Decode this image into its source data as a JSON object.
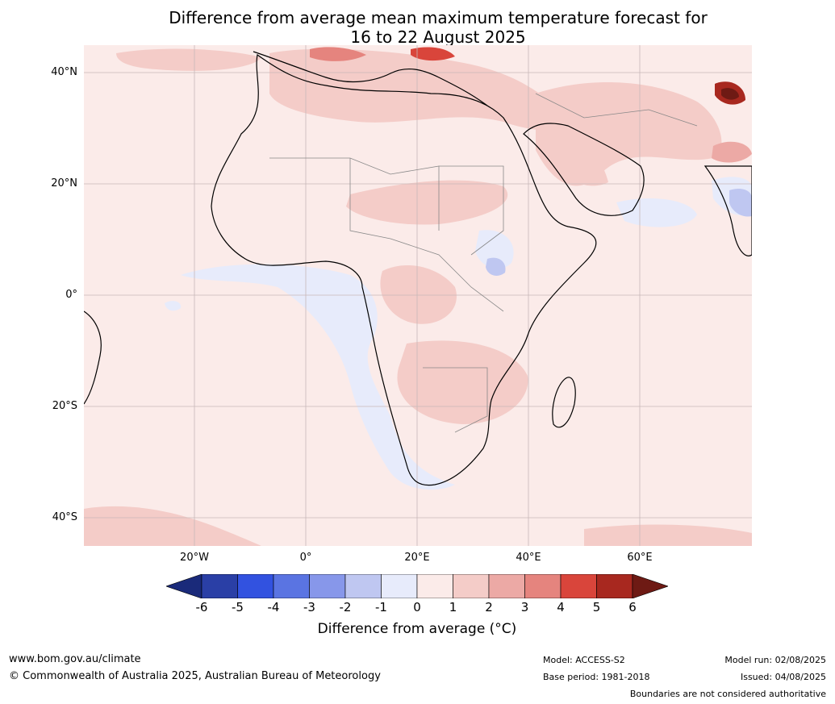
{
  "title": {
    "line1": "Difference from average mean maximum temperature forecast for",
    "line2": "16 to 22 August 2025"
  },
  "map": {
    "lat_labels": [
      "40°N",
      "20°N",
      "0°",
      "20°S",
      "40°S"
    ],
    "lon_labels": [
      "20°W",
      "0°",
      "20°E",
      "40°E",
      "60°E"
    ],
    "background_color": "#fbebe9",
    "coast_color": "#000000",
    "border_color": "#888888",
    "grid_color": "#c8b8b8"
  },
  "colorbar": {
    "ticks": [
      "-6",
      "-5",
      "-4",
      "-3",
      "-2",
      "-1",
      "0",
      "1",
      "2",
      "3",
      "4",
      "5",
      "6"
    ],
    "colors": [
      "#2a3fa6",
      "#3252e0",
      "#5a74e2",
      "#8797ea",
      "#bfc7f1",
      "#e7ebfb",
      "#fbebe9",
      "#f4ccc8",
      "#eca9a5",
      "#e5847e",
      "#d9453b",
      "#a8281f"
    ],
    "low_extend_color": "#1a2a7a",
    "high_extend_color": "#6e1a14",
    "label": "Difference from average ($^\\circ$C)",
    "label_display": "Difference from average (°C)"
  },
  "footer": {
    "website": "www.bom.gov.au/climate",
    "copyright": "© Commonwealth of Australia 2025, Australian Bureau of Meteorology",
    "model": "Model: ACCESS-S2",
    "base_period": "Base period: 1981-2018",
    "model_run": "Model run: 02/08/2025",
    "issued": "Issued: 04/08/2025",
    "disclaimer": "Boundaries are not considered authoritative"
  }
}
